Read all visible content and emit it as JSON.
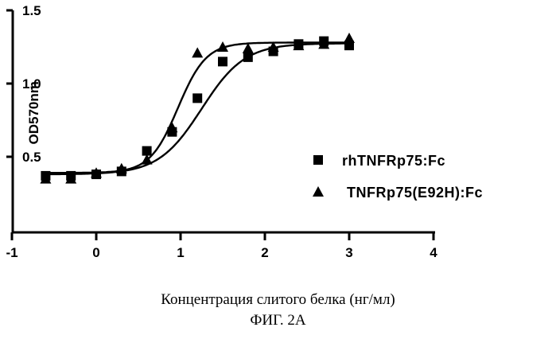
{
  "chart_data": {
    "type": "scatter",
    "ylabel": "OD570nm",
    "xlim": [
      -1,
      4
    ],
    "ylim": [
      0.15,
      1.5
    ],
    "x_ticks": [
      "-1",
      "0",
      "1",
      "2",
      "3",
      "4"
    ],
    "y_ticks": [
      "0.5",
      "1.0",
      "1.5"
    ],
    "series": [
      {
        "name": "rhTNFRp75:Fc",
        "marker": "square",
        "points": [
          {
            "x": -0.6,
            "y": 0.37
          },
          {
            "x": -0.3,
            "y": 0.37
          },
          {
            "x": 0.0,
            "y": 0.38
          },
          {
            "x": 0.3,
            "y": 0.4
          },
          {
            "x": 0.6,
            "y": 0.54
          },
          {
            "x": 0.9,
            "y": 0.67
          },
          {
            "x": 1.2,
            "y": 0.9
          },
          {
            "x": 1.5,
            "y": 1.15
          },
          {
            "x": 1.8,
            "y": 1.18
          },
          {
            "x": 2.1,
            "y": 1.22
          },
          {
            "x": 2.4,
            "y": 1.27
          },
          {
            "x": 2.7,
            "y": 1.29
          },
          {
            "x": 3.0,
            "y": 1.26
          }
        ],
        "fit": {
          "bottom": 0.38,
          "top": 1.275,
          "logEC50": 1.25,
          "hill": 1.7
        }
      },
      {
        "name": "TNFRp75(E92H):Fc",
        "marker": "triangle",
        "points": [
          {
            "x": -0.6,
            "y": 0.35
          },
          {
            "x": -0.3,
            "y": 0.35
          },
          {
            "x": 0.0,
            "y": 0.39
          },
          {
            "x": 0.3,
            "y": 0.42
          },
          {
            "x": 0.6,
            "y": 0.48
          },
          {
            "x": 0.9,
            "y": 0.7
          },
          {
            "x": 1.2,
            "y": 1.21
          },
          {
            "x": 1.5,
            "y": 1.25
          },
          {
            "x": 1.8,
            "y": 1.24
          },
          {
            "x": 2.1,
            "y": 1.25
          },
          {
            "x": 2.4,
            "y": 1.26
          },
          {
            "x": 2.7,
            "y": 1.27
          },
          {
            "x": 3.0,
            "y": 1.31
          }
        ],
        "fit": {
          "bottom": 0.39,
          "top": 1.28,
          "logEC50": 0.97,
          "hill": 2.6
        }
      }
    ]
  },
  "caption": {
    "line1": "Концентрация слитого белка (нг/мл)",
    "line2": "ФИГ. 2А"
  }
}
